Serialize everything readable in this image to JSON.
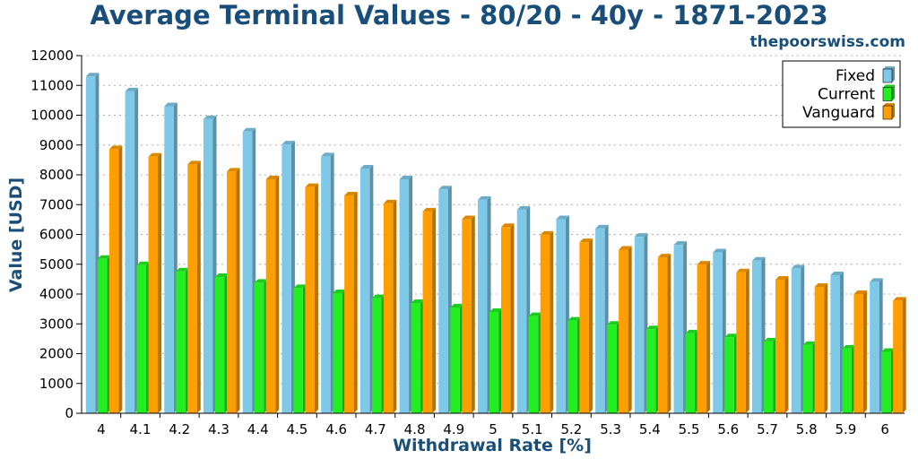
{
  "chart_data": {
    "type": "bar",
    "title": "Average Terminal Values - 80/20 - 40y - 1871-2023",
    "brand": "thepoorswiss.com",
    "xlabel": "Withdrawal Rate [%]",
    "ylabel": "Value [USD]",
    "ylim": [
      0,
      12000
    ],
    "yticks": [
      "0",
      "1000",
      "2000",
      "3000",
      "4000",
      "5000",
      "6000",
      "7000",
      "8000",
      "9000",
      "10000",
      "11000",
      "12000"
    ],
    "grid": true,
    "legend_position": "top-right",
    "categories": [
      "4",
      "4.1",
      "4.2",
      "4.3",
      "4.4",
      "4.5",
      "4.6",
      "4.7",
      "4.8",
      "4.9",
      "5",
      "5.1",
      "5.2",
      "5.3",
      "5.4",
      "5.5",
      "5.6",
      "5.7",
      "5.8",
      "5.9",
      "6"
    ],
    "series": [
      {
        "name": "Fixed",
        "color": "#7ec8e8",
        "values": [
          11300,
          10800,
          10300,
          9870,
          9450,
          9020,
          8620,
          8210,
          7850,
          7510,
          7160,
          6830,
          6510,
          6200,
          5920,
          5650,
          5400,
          5120,
          4860,
          4630,
          4410
        ]
      },
      {
        "name": "Current",
        "color": "#22ee22",
        "values": [
          5180,
          4970,
          4760,
          4570,
          4380,
          4200,
          4030,
          3860,
          3700,
          3550,
          3400,
          3260,
          3110,
          2970,
          2820,
          2680,
          2550,
          2410,
          2290,
          2170,
          2060
        ]
      },
      {
        "name": "Vanguard",
        "color": "#ff9e00",
        "values": [
          8860,
          8610,
          8350,
          8110,
          7850,
          7590,
          7310,
          7040,
          6770,
          6510,
          6250,
          5990,
          5740,
          5490,
          5230,
          4990,
          4730,
          4480,
          4240,
          4000,
          3780
        ]
      }
    ]
  }
}
